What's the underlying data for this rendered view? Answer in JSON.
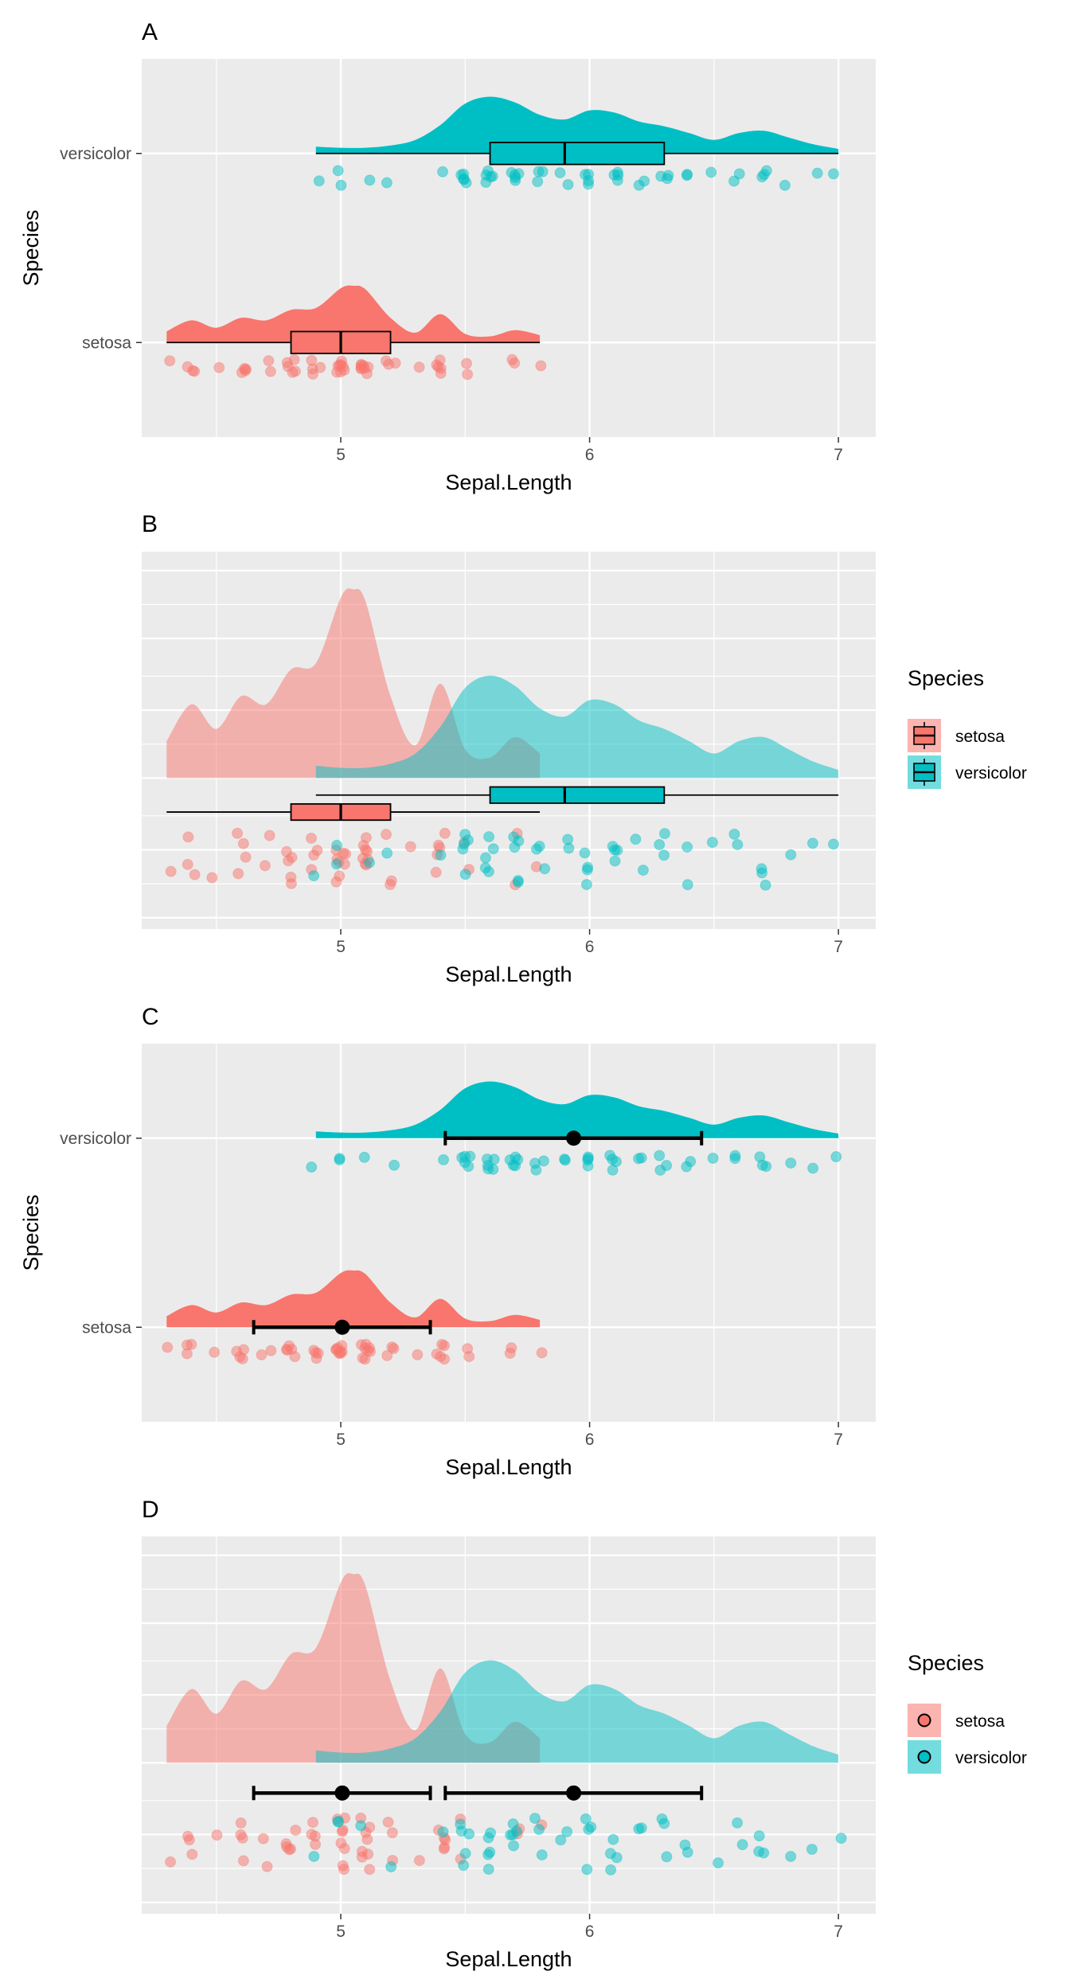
{
  "colors": {
    "setosa": "#F8766D",
    "versicolor": "#00BFC4",
    "panel_bg": "#EBEBEB",
    "grid": "#FFFFFF",
    "text": "#000000",
    "tick_text": "#4D4D4D",
    "interval": "#000000"
  },
  "legend": {
    "title": "Species",
    "entries": [
      "setosa",
      "versicolor"
    ]
  },
  "chart_data": [
    {
      "panel": "A",
      "type": "raincloud-boxplot",
      "xlabel": "Sepal.Length",
      "ylabel": "Species",
      "xticks": [
        5,
        6,
        7
      ],
      "xlim": [
        4.2,
        7.15
      ],
      "y_categories": [
        "setosa",
        "versicolor"
      ],
      "dodged": false,
      "legend": "none",
      "series": [
        {
          "name": "setosa",
          "box": {
            "min": 4.3,
            "q1": 4.8,
            "median": 5.0,
            "q3": 5.2,
            "max": 5.8
          },
          "density": {
            "x": [
              4.3,
              4.4,
              4.5,
              4.6,
              4.7,
              4.8,
              4.9,
              5.0,
              5.05,
              5.1,
              5.2,
              5.3,
              5.4,
              5.5,
              5.6,
              5.7,
              5.8
            ],
            "y": [
              0.18,
              0.36,
              0.24,
              0.4,
              0.36,
              0.53,
              0.56,
              0.88,
              0.92,
              0.86,
              0.4,
              0.16,
              0.46,
              0.14,
              0.1,
              0.2,
              0.12
            ]
          },
          "points": [
            4.3,
            4.4,
            4.4,
            4.4,
            4.5,
            4.6,
            4.6,
            4.6,
            4.6,
            4.7,
            4.7,
            4.8,
            4.8,
            4.8,
            4.8,
            4.8,
            4.9,
            4.9,
            4.9,
            4.9,
            5.0,
            5.0,
            5.0,
            5.0,
            5.0,
            5.0,
            5.0,
            5.0,
            5.1,
            5.1,
            5.1,
            5.1,
            5.1,
            5.1,
            5.1,
            5.1,
            5.2,
            5.2,
            5.2,
            5.3,
            5.4,
            5.4,
            5.4,
            5.4,
            5.4,
            5.5,
            5.5,
            5.7,
            5.7,
            5.8
          ]
        },
        {
          "name": "versicolor",
          "box": {
            "min": 4.9,
            "q1": 5.6,
            "median": 5.9,
            "q3": 6.3,
            "max": 7.0
          },
          "density": {
            "x": [
              4.9,
              5.0,
              5.1,
              5.2,
              5.3,
              5.4,
              5.5,
              5.6,
              5.7,
              5.8,
              5.9,
              6.0,
              6.1,
              6.2,
              6.3,
              6.4,
              6.5,
              6.6,
              6.7,
              6.8,
              6.9,
              7.0
            ],
            "y": [
              0.06,
              0.05,
              0.05,
              0.07,
              0.12,
              0.25,
              0.44,
              0.5,
              0.45,
              0.34,
              0.3,
              0.38,
              0.36,
              0.28,
              0.24,
              0.18,
              0.12,
              0.18,
              0.2,
              0.14,
              0.08,
              0.04
            ]
          },
          "points": [
            4.9,
            5.0,
            5.0,
            5.1,
            5.2,
            5.4,
            5.5,
            5.5,
            5.5,
            5.5,
            5.5,
            5.6,
            5.6,
            5.6,
            5.6,
            5.6,
            5.7,
            5.7,
            5.7,
            5.7,
            5.7,
            5.8,
            5.8,
            5.8,
            5.9,
            5.9,
            6.0,
            6.0,
            6.0,
            6.0,
            6.1,
            6.1,
            6.1,
            6.1,
            6.2,
            6.2,
            6.3,
            6.3,
            6.3,
            6.4,
            6.4,
            6.5,
            6.6,
            6.6,
            6.7,
            6.7,
            6.7,
            6.8,
            6.9,
            7.0
          ]
        }
      ]
    },
    {
      "panel": "B",
      "type": "raincloud-boxplot",
      "xlabel": "Sepal.Length",
      "ylabel": "",
      "xticks": [
        5,
        6,
        7
      ],
      "xlim": [
        4.2,
        7.15
      ],
      "y_categories": [],
      "dodged": true,
      "legend": "right",
      "series": [
        {
          "name": "setosa",
          "box": {
            "min": 4.3,
            "q1": 4.8,
            "median": 5.0,
            "q3": 5.2,
            "max": 5.8
          },
          "density": {
            "x": [
              4.3,
              4.4,
              4.5,
              4.6,
              4.7,
              4.8,
              4.9,
              5.0,
              5.05,
              5.1,
              5.2,
              5.3,
              5.4,
              5.5,
              5.6,
              5.7,
              5.8
            ],
            "y": [
              0.18,
              0.36,
              0.24,
              0.4,
              0.36,
              0.53,
              0.56,
              0.88,
              0.92,
              0.86,
              0.4,
              0.16,
              0.46,
              0.14,
              0.1,
              0.2,
              0.12
            ]
          },
          "points": [
            4.3,
            4.4,
            4.4,
            4.4,
            4.5,
            4.6,
            4.6,
            4.6,
            4.6,
            4.7,
            4.7,
            4.8,
            4.8,
            4.8,
            4.8,
            4.8,
            4.9,
            4.9,
            4.9,
            4.9,
            5.0,
            5.0,
            5.0,
            5.0,
            5.0,
            5.0,
            5.0,
            5.0,
            5.1,
            5.1,
            5.1,
            5.1,
            5.1,
            5.1,
            5.1,
            5.1,
            5.2,
            5.2,
            5.2,
            5.3,
            5.4,
            5.4,
            5.4,
            5.4,
            5.4,
            5.5,
            5.5,
            5.7,
            5.7,
            5.8
          ]
        },
        {
          "name": "versicolor",
          "box": {
            "min": 4.9,
            "q1": 5.6,
            "median": 5.9,
            "q3": 6.3,
            "max": 7.0
          },
          "density": {
            "x": [
              4.9,
              5.0,
              5.1,
              5.2,
              5.3,
              5.4,
              5.5,
              5.6,
              5.7,
              5.8,
              5.9,
              6.0,
              6.1,
              6.2,
              6.3,
              6.4,
              6.5,
              6.6,
              6.7,
              6.8,
              6.9,
              7.0
            ],
            "y": [
              0.06,
              0.05,
              0.05,
              0.07,
              0.12,
              0.25,
              0.44,
              0.5,
              0.45,
              0.34,
              0.3,
              0.38,
              0.36,
              0.28,
              0.24,
              0.18,
              0.12,
              0.18,
              0.2,
              0.14,
              0.08,
              0.04
            ]
          },
          "points": [
            4.9,
            5.0,
            5.0,
            5.1,
            5.2,
            5.4,
            5.5,
            5.5,
            5.5,
            5.5,
            5.5,
            5.6,
            5.6,
            5.6,
            5.6,
            5.6,
            5.7,
            5.7,
            5.7,
            5.7,
            5.7,
            5.8,
            5.8,
            5.8,
            5.9,
            5.9,
            6.0,
            6.0,
            6.0,
            6.0,
            6.1,
            6.1,
            6.1,
            6.1,
            6.2,
            6.2,
            6.3,
            6.3,
            6.3,
            6.4,
            6.4,
            6.5,
            6.6,
            6.6,
            6.7,
            6.7,
            6.7,
            6.8,
            6.9,
            7.0
          ]
        }
      ]
    },
    {
      "panel": "C",
      "type": "raincloud-pointinterval",
      "xlabel": "Sepal.Length",
      "ylabel": "Species",
      "xticks": [
        5,
        6,
        7
      ],
      "xlim": [
        4.2,
        7.15
      ],
      "y_categories": [
        "setosa",
        "versicolor"
      ],
      "dodged": false,
      "legend": "none",
      "series": [
        {
          "name": "setosa",
          "interval": {
            "mean": 5.006,
            "low": 4.65,
            "high": 5.36
          },
          "density": {
            "x": [
              4.3,
              4.4,
              4.5,
              4.6,
              4.7,
              4.8,
              4.9,
              5.0,
              5.05,
              5.1,
              5.2,
              5.3,
              5.4,
              5.5,
              5.6,
              5.7,
              5.8
            ],
            "y": [
              0.18,
              0.36,
              0.24,
              0.4,
              0.36,
              0.53,
              0.56,
              0.88,
              0.92,
              0.86,
              0.4,
              0.16,
              0.46,
              0.14,
              0.1,
              0.2,
              0.12
            ]
          },
          "points": [
            4.3,
            4.4,
            4.4,
            4.4,
            4.5,
            4.6,
            4.6,
            4.6,
            4.6,
            4.7,
            4.7,
            4.8,
            4.8,
            4.8,
            4.8,
            4.8,
            4.9,
            4.9,
            4.9,
            4.9,
            5.0,
            5.0,
            5.0,
            5.0,
            5.0,
            5.0,
            5.0,
            5.0,
            5.1,
            5.1,
            5.1,
            5.1,
            5.1,
            5.1,
            5.1,
            5.1,
            5.2,
            5.2,
            5.2,
            5.3,
            5.4,
            5.4,
            5.4,
            5.4,
            5.4,
            5.5,
            5.5,
            5.7,
            5.7,
            5.8
          ]
        },
        {
          "name": "versicolor",
          "interval": {
            "mean": 5.936,
            "low": 5.42,
            "high": 6.45
          },
          "density": {
            "x": [
              4.9,
              5.0,
              5.1,
              5.2,
              5.3,
              5.4,
              5.5,
              5.6,
              5.7,
              5.8,
              5.9,
              6.0,
              6.1,
              6.2,
              6.3,
              6.4,
              6.5,
              6.6,
              6.7,
              6.8,
              6.9,
              7.0
            ],
            "y": [
              0.06,
              0.05,
              0.05,
              0.07,
              0.12,
              0.25,
              0.44,
              0.5,
              0.45,
              0.34,
              0.3,
              0.38,
              0.36,
              0.28,
              0.24,
              0.18,
              0.12,
              0.18,
              0.2,
              0.14,
              0.08,
              0.04
            ]
          },
          "points": [
            4.9,
            5.0,
            5.0,
            5.1,
            5.2,
            5.4,
            5.5,
            5.5,
            5.5,
            5.5,
            5.5,
            5.6,
            5.6,
            5.6,
            5.6,
            5.6,
            5.7,
            5.7,
            5.7,
            5.7,
            5.7,
            5.8,
            5.8,
            5.8,
            5.9,
            5.9,
            6.0,
            6.0,
            6.0,
            6.0,
            6.1,
            6.1,
            6.1,
            6.1,
            6.2,
            6.2,
            6.3,
            6.3,
            6.3,
            6.4,
            6.4,
            6.5,
            6.6,
            6.6,
            6.7,
            6.7,
            6.7,
            6.8,
            6.9,
            7.0
          ]
        }
      ]
    },
    {
      "panel": "D",
      "type": "raincloud-pointinterval",
      "xlabel": "Sepal.Length",
      "ylabel": "",
      "xticks": [
        5,
        6,
        7
      ],
      "xlim": [
        4.2,
        7.15
      ],
      "y_categories": [],
      "dodged": true,
      "legend": "right",
      "series": [
        {
          "name": "setosa",
          "interval": {
            "mean": 5.006,
            "low": 4.65,
            "high": 5.36
          },
          "density": {
            "x": [
              4.3,
              4.4,
              4.5,
              4.6,
              4.7,
              4.8,
              4.9,
              5.0,
              5.05,
              5.1,
              5.2,
              5.3,
              5.4,
              5.5,
              5.6,
              5.7,
              5.8
            ],
            "y": [
              0.18,
              0.36,
              0.24,
              0.4,
              0.36,
              0.53,
              0.56,
              0.88,
              0.92,
              0.86,
              0.4,
              0.16,
              0.46,
              0.14,
              0.1,
              0.2,
              0.12
            ]
          },
          "points": [
            4.3,
            4.4,
            4.4,
            4.4,
            4.5,
            4.6,
            4.6,
            4.6,
            4.6,
            4.7,
            4.7,
            4.8,
            4.8,
            4.8,
            4.8,
            4.8,
            4.9,
            4.9,
            4.9,
            4.9,
            5.0,
            5.0,
            5.0,
            5.0,
            5.0,
            5.0,
            5.0,
            5.0,
            5.1,
            5.1,
            5.1,
            5.1,
            5.1,
            5.1,
            5.1,
            5.1,
            5.2,
            5.2,
            5.2,
            5.3,
            5.4,
            5.4,
            5.4,
            5.4,
            5.4,
            5.5,
            5.5,
            5.7,
            5.7,
            5.8
          ]
        },
        {
          "name": "versicolor",
          "interval": {
            "mean": 5.936,
            "low": 5.42,
            "high": 6.45
          },
          "density": {
            "x": [
              4.9,
              5.0,
              5.1,
              5.2,
              5.3,
              5.4,
              5.5,
              5.6,
              5.7,
              5.8,
              5.9,
              6.0,
              6.1,
              6.2,
              6.3,
              6.4,
              6.5,
              6.6,
              6.7,
              6.8,
              6.9,
              7.0
            ],
            "y": [
              0.06,
              0.05,
              0.05,
              0.07,
              0.12,
              0.25,
              0.44,
              0.5,
              0.45,
              0.34,
              0.3,
              0.38,
              0.36,
              0.28,
              0.24,
              0.18,
              0.12,
              0.18,
              0.2,
              0.14,
              0.08,
              0.04
            ]
          },
          "points": [
            4.9,
            5.0,
            5.0,
            5.1,
            5.2,
            5.4,
            5.5,
            5.5,
            5.5,
            5.5,
            5.5,
            5.6,
            5.6,
            5.6,
            5.6,
            5.6,
            5.7,
            5.7,
            5.7,
            5.7,
            5.7,
            5.8,
            5.8,
            5.8,
            5.9,
            5.9,
            6.0,
            6.0,
            6.0,
            6.0,
            6.1,
            6.1,
            6.1,
            6.1,
            6.2,
            6.2,
            6.3,
            6.3,
            6.3,
            6.4,
            6.4,
            6.5,
            6.6,
            6.6,
            6.7,
            6.7,
            6.7,
            6.8,
            6.9,
            7.0
          ]
        }
      ]
    }
  ]
}
